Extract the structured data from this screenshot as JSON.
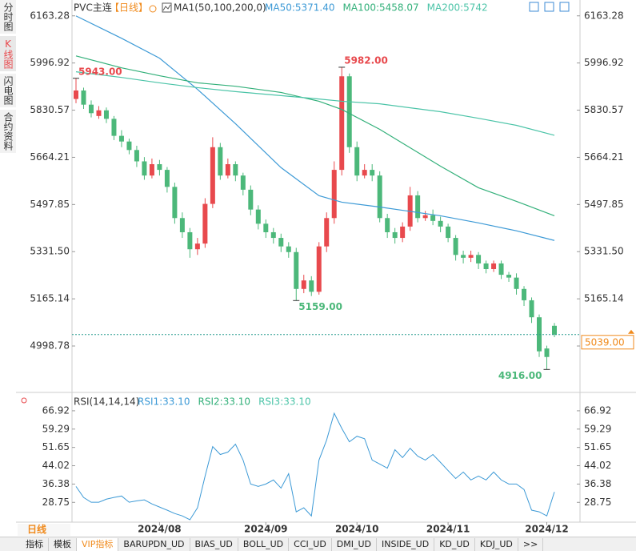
{
  "sidebar": {
    "tabs": [
      "分时图",
      "K线图",
      "闪电图",
      "合约资料"
    ],
    "active": 1
  },
  "chart_data": [
    {
      "type": "candlestick",
      "title": "PVC主连",
      "period": "【日线】",
      "indicator": "MA1(50,100,200,0)",
      "categories": [
        null,
        null,
        null,
        null,
        null,
        null,
        null,
        null,
        null,
        null,
        null,
        "2024/08",
        null,
        null,
        null,
        null,
        null,
        null,
        null,
        null,
        null,
        null,
        null,
        null,
        null,
        "2024/09",
        null,
        null,
        null,
        null,
        null,
        null,
        null,
        null,
        null,
        null,
        null,
        "2024/10",
        null,
        null,
        null,
        null,
        null,
        null,
        null,
        null,
        null,
        null,
        null,
        "2024/11",
        null,
        null,
        null,
        null,
        null,
        null,
        null,
        null,
        null,
        null,
        null,
        null,
        "2024/12",
        null
      ],
      "open": [
        5870,
        5900,
        5850,
        5810,
        5830,
        5800,
        5740,
        5720,
        5690,
        5650,
        5600,
        5640,
        5620,
        5560,
        5450,
        5400,
        5340,
        5360,
        5500,
        5700,
        5600,
        5640,
        5600,
        5550,
        5480,
        5430,
        5400,
        5380,
        5350,
        5330,
        5200,
        5230,
        5190,
        5350,
        5450,
        5620,
        5950,
        5700,
        5600,
        5620,
        5600,
        5450,
        5400,
        5380,
        5420,
        5530,
        5450,
        5460,
        5440,
        5420,
        5380,
        5320,
        5310,
        5320,
        5290,
        5270,
        5290,
        5250,
        5240,
        5200,
        5160,
        5100,
        4990,
        5070
      ],
      "high": [
        5943,
        5910,
        5865,
        5845,
        5840,
        5810,
        5760,
        5730,
        5705,
        5665,
        5660,
        5655,
        5630,
        5575,
        5470,
        5415,
        5380,
        5520,
        5735,
        5715,
        5660,
        5650,
        5610,
        5565,
        5495,
        5445,
        5415,
        5395,
        5365,
        5345,
        5250,
        5245,
        5365,
        5470,
        5650,
        5982,
        5960,
        5720,
        5640,
        5640,
        5615,
        5465,
        5415,
        5435,
        5560,
        5545,
        5475,
        5480,
        5455,
        5430,
        5390,
        5335,
        5335,
        5330,
        5300,
        5300,
        5300,
        5260,
        5255,
        5210,
        5170,
        5110,
        5000,
        5080
      ],
      "low": [
        5855,
        5835,
        5805,
        5800,
        5785,
        5725,
        5700,
        5675,
        5630,
        5585,
        5590,
        5600,
        5540,
        5430,
        5380,
        5310,
        5320,
        5345,
        5485,
        5585,
        5590,
        5580,
        5530,
        5460,
        5410,
        5380,
        5360,
        5330,
        5310,
        5159,
        5185,
        5175,
        5180,
        5330,
        5430,
        5600,
        5680,
        5580,
        5590,
        5580,
        5435,
        5380,
        5360,
        5365,
        5405,
        5435,
        5440,
        5425,
        5400,
        5365,
        5300,
        5290,
        5295,
        5270,
        5255,
        5260,
        5235,
        5225,
        5180,
        5140,
        5080,
        4960,
        4916,
        5030
      ],
      "close": [
        5900,
        5850,
        5820,
        5830,
        5800,
        5740,
        5720,
        5690,
        5650,
        5600,
        5640,
        5620,
        5560,
        5450,
        5400,
        5340,
        5360,
        5500,
        5700,
        5600,
        5640,
        5600,
        5550,
        5480,
        5430,
        5400,
        5380,
        5350,
        5330,
        5200,
        5230,
        5190,
        5350,
        5450,
        5620,
        5950,
        5700,
        5600,
        5620,
        5600,
        5450,
        5400,
        5380,
        5420,
        5530,
        5450,
        5460,
        5440,
        5420,
        5380,
        5320,
        5310,
        5320,
        5290,
        5270,
        5290,
        5250,
        5240,
        5200,
        5160,
        5100,
        4980,
        4960,
        5039
      ],
      "up_color": "#e8494d",
      "down_color": "#4cb87a",
      "series": [
        {
          "name": "MA50:5371.40",
          "color": "#3d9ad6",
          "x": [
            0,
            6,
            11,
            16,
            21,
            27,
            32,
            35,
            40,
            48,
            53,
            58,
            63
          ],
          "values": [
            6163,
            6084,
            6014,
            5904,
            5783,
            5628,
            5529,
            5506,
            5489,
            5458,
            5433,
            5405,
            5371
          ]
        },
        {
          "name": "MA100:5458.07",
          "color": "#33b07a",
          "x": [
            0,
            6,
            11,
            16,
            21,
            27,
            32,
            35,
            40,
            48,
            53,
            58,
            63
          ],
          "values": [
            6022,
            5980,
            5952,
            5927,
            5915,
            5893,
            5862,
            5833,
            5763,
            5633,
            5557,
            5509,
            5458
          ]
        },
        {
          "name": "MA200:5742",
          "color": "#4cc4a8",
          "x": [
            0,
            6,
            11,
            16,
            21,
            27,
            32,
            35,
            40,
            48,
            53,
            58,
            63
          ],
          "values": [
            5966,
            5946,
            5927,
            5910,
            5896,
            5882,
            5870,
            5862,
            5853,
            5825,
            5802,
            5777,
            5742
          ]
        }
      ],
      "annotations": [
        {
          "x": 0,
          "value": 5943,
          "label": "5943.00",
          "color": "#e8494d"
        },
        {
          "x": 35,
          "value": 5982,
          "label": "5982.00",
          "color": "#e8494d"
        },
        {
          "x": 29,
          "value": 5159,
          "label": "5159.00",
          "color": "#4cb87a"
        },
        {
          "x": 62,
          "value": 4916,
          "label": "4916.00",
          "color": "#4cb87a"
        }
      ],
      "last": {
        "value": 5039,
        "label": "5039.00",
        "color": "#f08a1c"
      },
      "ylim": [
        4835,
        6205
      ],
      "yticks": [
        6163.28,
        5996.92,
        5830.57,
        5664.21,
        5497.85,
        {
          "value": 5331.5,
          "label": "5331.50"
        },
        5165.14,
        4998.78
      ],
      "grid": false
    },
    {
      "type": "line",
      "title": "RSI(14,14,14)",
      "legend": [
        {
          "name": "RSI1:33.10",
          "color": "#3d9ad6"
        },
        {
          "name": "RSI2:33.10",
          "color": "#33b07a"
        },
        {
          "name": "RSI3:33.10",
          "color": "#4cc4a8"
        }
      ],
      "color": "#3d9ad6",
      "values": [
        35.4,
        30.8,
        28.8,
        28.8,
        30.1,
        30.8,
        31.4,
        28.8,
        29.4,
        29.8,
        28.1,
        26.8,
        25.5,
        24.1,
        23.1,
        21.5,
        26.5,
        39.7,
        52.0,
        48.7,
        49.7,
        53.0,
        46.4,
        36.4,
        35.4,
        36.4,
        38.1,
        34.7,
        40.7,
        24.8,
        26.5,
        23.1,
        46.4,
        54.7,
        65.9,
        59.6,
        54.0,
        56.3,
        55.3,
        46.4,
        44.7,
        43.0,
        50.7,
        47.4,
        51.3,
        48.0,
        46.4,
        48.7,
        45.4,
        42.0,
        38.7,
        41.4,
        38.1,
        39.7,
        38.1,
        41.4,
        38.1,
        36.4,
        36.4,
        34.1,
        25.5,
        24.8,
        23.1,
        33.1
      ],
      "ylim": [
        20.5,
        72.9
      ],
      "yticks": [
        66.92,
        59.29,
        51.65,
        44.02,
        36.38,
        28.75
      ],
      "grid": false
    }
  ],
  "period_label": "日线",
  "tabs": [
    "指标",
    "模板",
    "VIP指标",
    "BARUPDN_UD",
    "BIAS_UD",
    "BOLL_UD",
    "CCI_UD",
    "DMI_UD",
    "INSIDE_UD",
    "KD_UD",
    "KDJ_UD"
  ],
  "active_tab": 2,
  "more": ">>"
}
